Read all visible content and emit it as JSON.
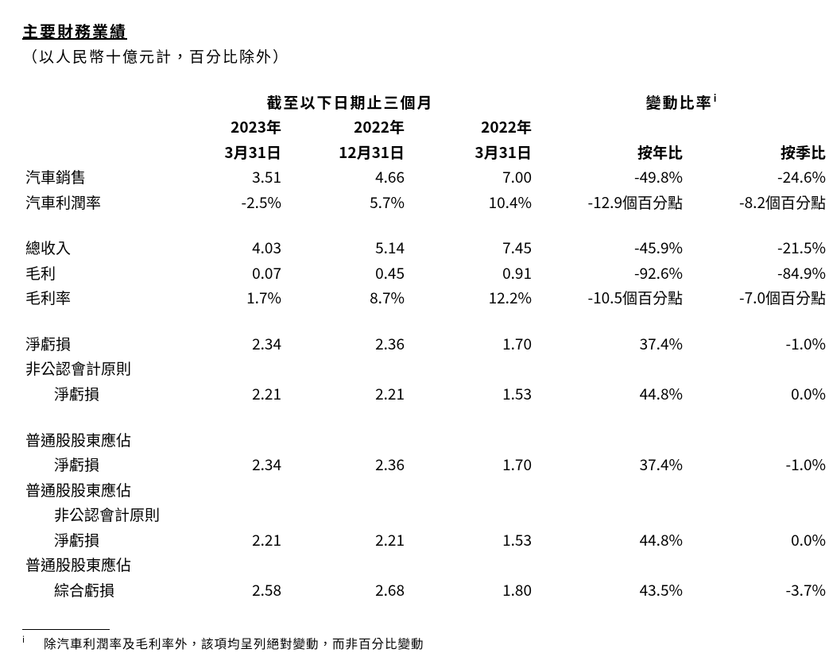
{
  "title": "主要財務業績",
  "subtitle": "（以人民幣十億元計，百分比除外）",
  "headers": {
    "period_span": "截至以下日期止三個月",
    "change_span": "變動比率",
    "change_superscript": "i",
    "dates": {
      "c1_year": "2023年",
      "c1_date": "3月31日",
      "c2_year": "2022年",
      "c2_date": "12月31日",
      "c3_year": "2022年",
      "c3_date": "3月31日"
    },
    "yoy": "按年比",
    "qoq": "按季比"
  },
  "rows": [
    {
      "label": "汽車銷售",
      "v1": "3.51",
      "v2": "4.66",
      "v3": "7.00",
      "yoy": "-49.8%",
      "qoq": "-24.6%"
    },
    {
      "label": "汽車利潤率",
      "v1": "-2.5%",
      "v2": "5.7%",
      "v3": "10.4%",
      "yoy": "-12.9個百分點",
      "qoq": "-8.2個百分點"
    },
    {
      "spacer": true
    },
    {
      "label": "總收入",
      "v1": "4.03",
      "v2": "5.14",
      "v3": "7.45",
      "yoy": "-45.9%",
      "qoq": "-21.5%"
    },
    {
      "label": "毛利",
      "v1": "0.07",
      "v2": "0.45",
      "v3": "0.91",
      "yoy": "-92.6%",
      "qoq": "-84.9%"
    },
    {
      "label": "毛利率",
      "v1": "1.7%",
      "v2": "8.7%",
      "v3": "12.2%",
      "yoy": "-10.5個百分點",
      "qoq": "-7.0個百分點"
    },
    {
      "spacer": true
    },
    {
      "label": "淨虧損",
      "v1": "2.34",
      "v2": "2.36",
      "v3": "1.70",
      "yoy": "37.4%",
      "qoq": "-1.0%"
    },
    {
      "label": "非公認會計原則",
      "labelOnly": true
    },
    {
      "label": "淨虧損",
      "indent": true,
      "v1": "2.21",
      "v2": "2.21",
      "v3": "1.53",
      "yoy": "44.8%",
      "qoq": "0.0%"
    },
    {
      "spacer": true
    },
    {
      "label": "普通股股東應佔",
      "labelOnly": true
    },
    {
      "label": "淨虧損",
      "indent": true,
      "v1": "2.34",
      "v2": "2.36",
      "v3": "1.70",
      "yoy": "37.4%",
      "qoq": "-1.0%"
    },
    {
      "label": "普通股股東應佔",
      "labelOnly": true
    },
    {
      "label": "非公認會計原則",
      "indent": true,
      "labelOnly": true
    },
    {
      "label": "淨虧損",
      "indent": true,
      "v1": "2.21",
      "v2": "2.21",
      "v3": "1.53",
      "yoy": "44.8%",
      "qoq": "0.0%"
    },
    {
      "label": "普通股股東應佔",
      "labelOnly": true
    },
    {
      "label": "綜合虧損",
      "indent": true,
      "v1": "2.58",
      "v2": "2.68",
      "v3": "1.80",
      "yoy": "43.5%",
      "qoq": "-3.7%"
    }
  ],
  "footnote": {
    "mark": "i",
    "text": "除汽車利潤率及毛利率外，該項均呈列絕對變動，而非百分比變動"
  },
  "style": {
    "text_color": "#000000",
    "background_color": "#ffffff",
    "base_font_size": 19,
    "header_font_weight": 700,
    "footnote_font_size": 15.5
  }
}
